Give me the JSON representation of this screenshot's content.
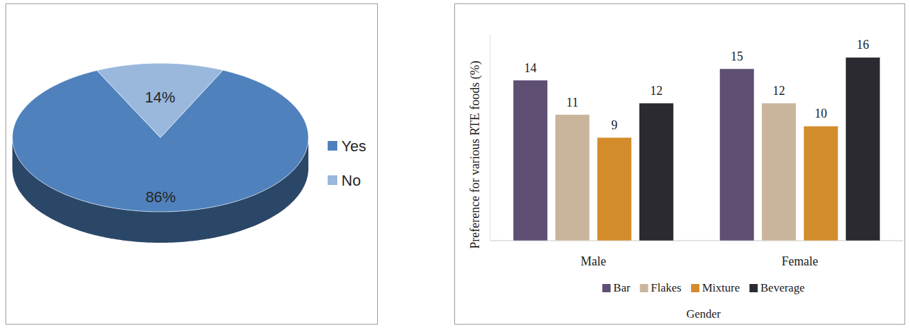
{
  "chart_data": [
    {
      "type": "pie",
      "categories": [
        "Yes",
        "No"
      ],
      "values": [
        86,
        14
      ],
      "colors": [
        "#4f81bd",
        "#9ab7dc"
      ],
      "legend": "right",
      "data_labels": true,
      "value_labels": [
        "86%",
        "14%"
      ]
    },
    {
      "type": "bar",
      "categories": [
        "Male",
        "Female"
      ],
      "series": [
        {
          "name": "Bar",
          "color": "#5e4f73",
          "values": [
            14,
            15
          ]
        },
        {
          "name": "Flakes",
          "color": "#c9b59c",
          "values": [
            11,
            12
          ]
        },
        {
          "name": "Mixture",
          "color": "#d38c2c",
          "values": [
            9,
            10
          ]
        },
        {
          "name": "Beverage",
          "color": "#2b2a31",
          "values": [
            12,
            16
          ]
        }
      ],
      "ylim": [
        0,
        18
      ],
      "y_label": "Preference for various RTE foods (%)",
      "x_label": "Gender",
      "data_labels": true,
      "legend": "bottom",
      "tick_labels": "x"
    }
  ]
}
